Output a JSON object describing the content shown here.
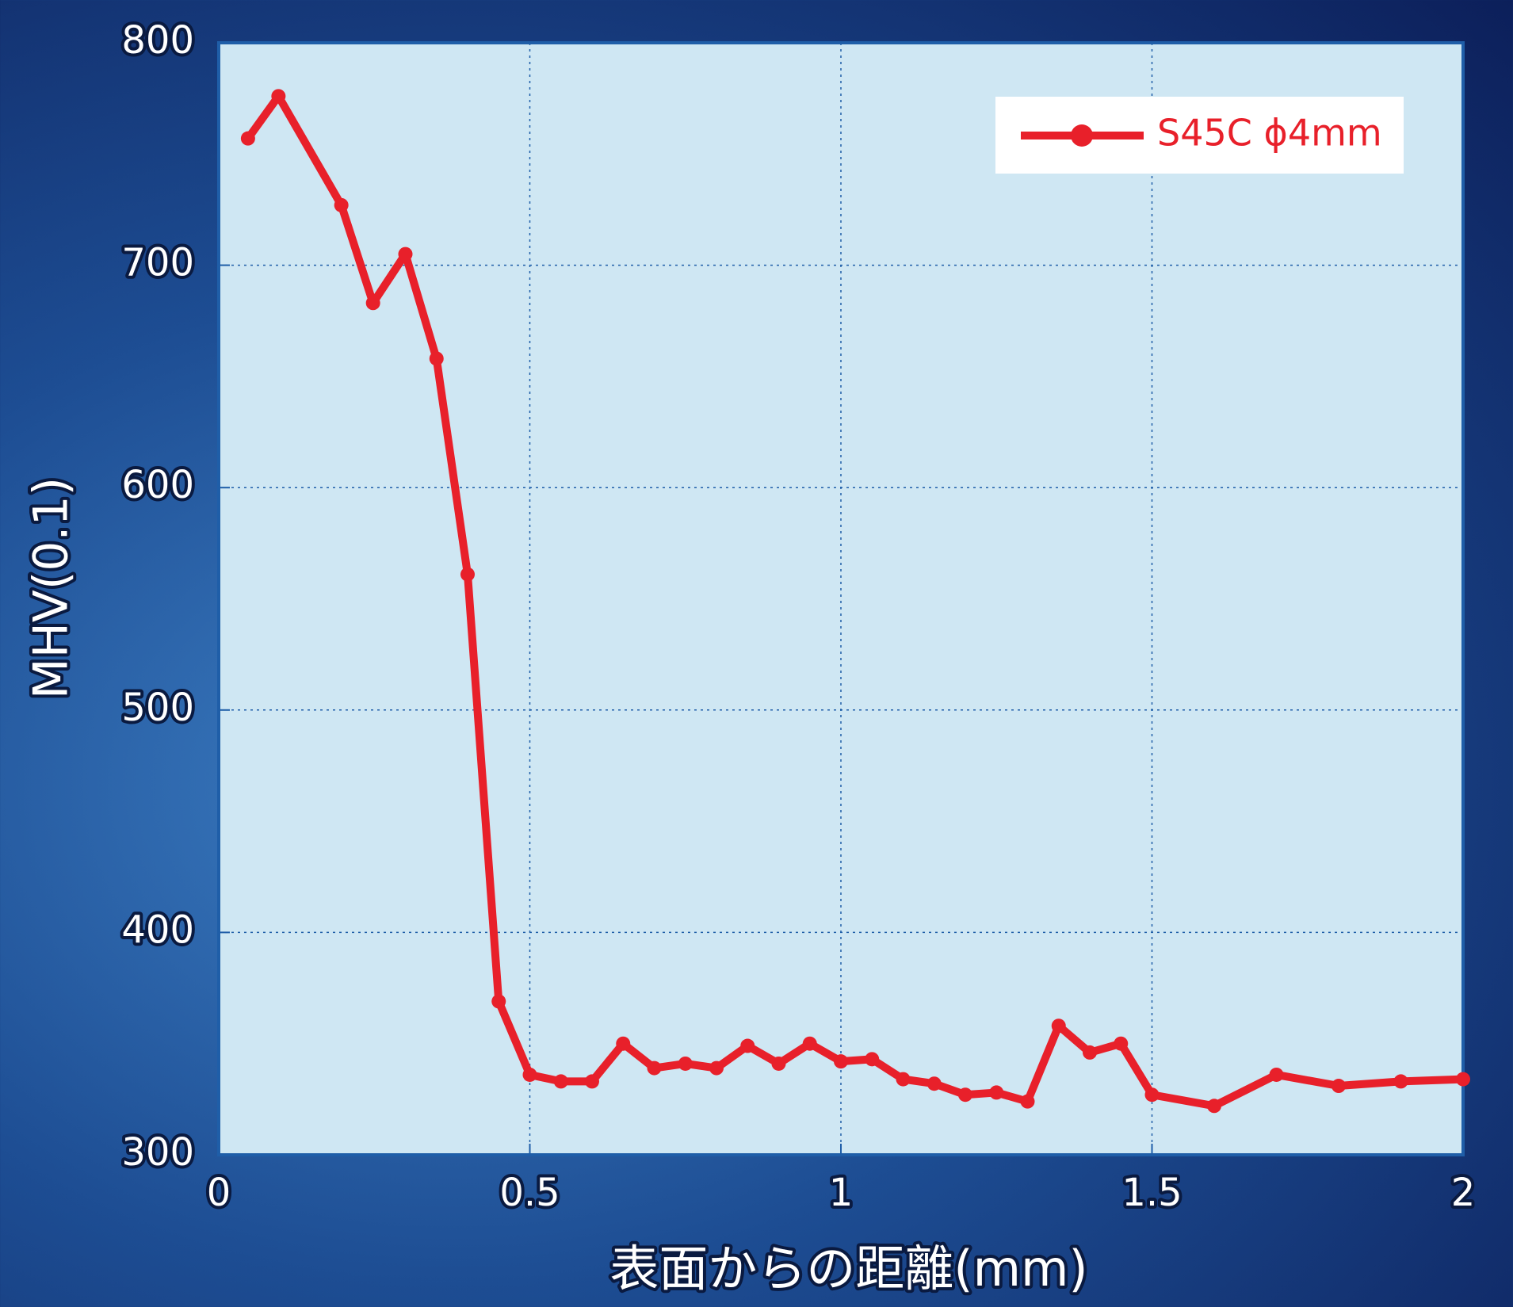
{
  "chart_data": {
    "type": "line",
    "x_label": "表面からの距離(mm)",
    "y_label": "MHV(0.1)",
    "x": [
      0.047,
      0.096,
      0.197,
      0.248,
      0.3,
      0.35,
      0.4,
      0.45,
      0.5,
      0.55,
      0.6,
      0.65,
      0.7,
      0.75,
      0.8,
      0.85,
      0.9,
      0.95,
      1.0,
      1.05,
      1.1,
      1.15,
      1.2,
      1.25,
      1.3,
      1.35,
      1.4,
      1.45,
      1.5,
      1.6,
      1.7,
      1.8,
      1.9,
      2.0
    ],
    "series": [
      {
        "name": "S45C ϕ4mm",
        "color": "#e8202a",
        "values": [
          757,
          776,
          727,
          683,
          705,
          658,
          561,
          369,
          336,
          333,
          333,
          350,
          339,
          341,
          339,
          349,
          341,
          350,
          342,
          343,
          334,
          332,
          327,
          328,
          324,
          358,
          346,
          350,
          327,
          322,
          336,
          331,
          333,
          334
        ]
      }
    ],
    "xlim": [
      0,
      2
    ],
    "xticks": [
      0,
      0.5,
      1,
      1.5,
      2
    ],
    "ylim": [
      300,
      800
    ],
    "yticks": [
      300,
      400,
      500,
      600,
      700,
      800
    ],
    "grid": true,
    "legend": "upper right"
  }
}
